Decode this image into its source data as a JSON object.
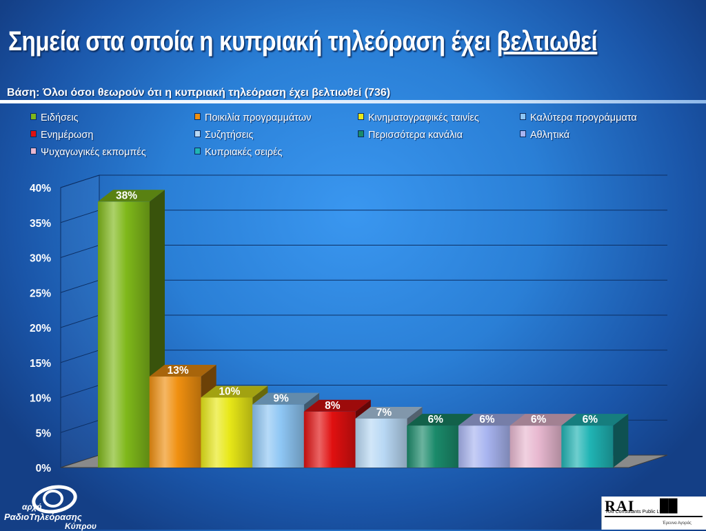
{
  "title": {
    "main": "Σημεία στα οποία η κυπριακή τηλεόραση έχει ",
    "underlined": "βελτιωθεί"
  },
  "base_text": "Βάση: Όλοι όσοι θεωρούν ότι η κυπριακή τηλεόραση έχει βελτιωθεί (736)",
  "logos": {
    "left_line1": "αρχή",
    "left_line2": "ΡαδιοΤηλεόρασης",
    "left_line3": "Κύπρου",
    "right_brand": "RAI",
    "right_company": "RAI Consultants Public Ltd",
    "right_tagline": "Έρευνα Αγοράς"
  },
  "chart_data": {
    "type": "bar",
    "categories": [
      "Ειδήσεις",
      "Ποικιλία προγραμμάτων",
      "Κινηματογραφικές ταινίες",
      "Καλύτερα προγράμματα",
      "Ενημέρωση",
      "Συζητήσεις",
      "Περισσότερα κανάλια",
      "Αθλητικά",
      "Ψυχαγωγικές εκπομπές",
      "Κυπριακές σειρές"
    ],
    "values": [
      38,
      13,
      10,
      9,
      8,
      7,
      6,
      6,
      6,
      6
    ],
    "value_labels": [
      "38%",
      "13%",
      "10%",
      "9%",
      "8%",
      "7%",
      "6%",
      "6%",
      "6%",
      "6%"
    ],
    "colors": [
      "#7fb81a",
      "#f09010",
      "#e8e818",
      "#8ec6f4",
      "#e01010",
      "#b8d8f4",
      "#1a8a6a",
      "#a8b4f0",
      "#e8b8d0",
      "#20b4b4"
    ],
    "ylim": [
      0,
      40
    ],
    "ytick_labels": [
      "0%",
      "5%",
      "10%",
      "15%",
      "20%",
      "25%",
      "30%",
      "35%",
      "40%"
    ],
    "grid": true,
    "legend_position": "top",
    "style": "3d"
  }
}
